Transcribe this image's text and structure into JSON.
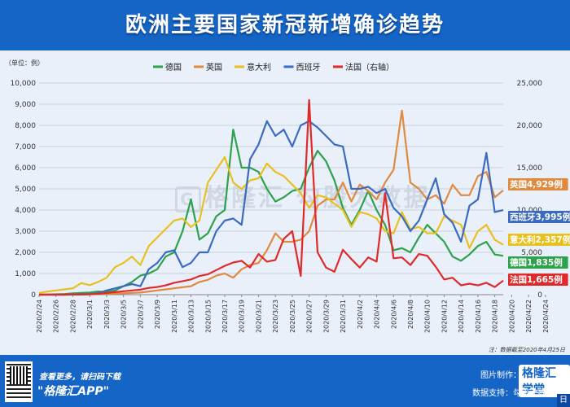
{
  "title": "欧洲主要国家新冠新增确诊趋势",
  "unit_label": "（单位：例）",
  "footer": {
    "promo": "查看更多，请扫码下载",
    "app": "\"格隆汇APP\"",
    "credit": "图片制作：",
    "brand": "格隆汇学堂",
    "support": "数据支持：勾股大数据 Wi",
    "corner": "日"
  },
  "chart_data": {
    "type": "line",
    "title": "欧洲主要国家新冠新增确诊趋势",
    "ylabel": "（单位：例）",
    "y_left": [
      0,
      10000
    ],
    "y_right": [
      0,
      25000
    ],
    "left_ticks": [
      "0",
      "1,000",
      "2,000",
      "3,000",
      "4,000",
      "5,000",
      "6,000",
      "7,000",
      "8,000",
      "9,000",
      "10,000"
    ],
    "right_ticks": [
      "0",
      "5,000",
      "10,000",
      "15,000",
      "20,000",
      "25,000"
    ],
    "x_labels": [
      "2020/2/24",
      "2020/2/26",
      "2020/2/28",
      "2020/3/1",
      "2020/3/3",
      "2020/3/5",
      "2020/3/7",
      "2020/3/9",
      "2020/3/11",
      "2020/3/13",
      "2020/3/15",
      "2020/3/17",
      "2020/3/19",
      "2020/3/21",
      "2020/3/23",
      "2020/3/25",
      "2020/3/27",
      "2020/3/29",
      "2020/3/31",
      "2020/4/2",
      "2020/4/4",
      "2020/4/6",
      "2020/4/8",
      "2020/4/10",
      "2020/4/12",
      "2020/4/14",
      "2020/4/16",
      "2020/4/18",
      "2020/4/20",
      "2020/4/22",
      "2020/4/24"
    ],
    "series": [
      {
        "name": "德国",
        "color": "#2ca24a",
        "axis": "left",
        "values": [
          0,
          10,
          20,
          30,
          60,
          80,
          100,
          150,
          130,
          200,
          400,
          600,
          900,
          1000,
          1200,
          1800,
          2000,
          3000,
          4500,
          2600,
          2900,
          3700,
          4000,
          7800,
          6000,
          6000,
          5800,
          5000,
          4400,
          4600,
          4900,
          5000,
          6000,
          6800,
          6300,
          5400,
          4100,
          3300,
          4000,
          4900,
          4000,
          3300,
          2100,
          2200,
          2000,
          2700,
          3300,
          2900,
          2500,
          1800,
          1600,
          1900,
          2300,
          2500,
          1900,
          1835
        ]
      },
      {
        "name": "英国",
        "color": "#e08a40",
        "axis": "left",
        "values": [
          0,
          0,
          0,
          0,
          10,
          10,
          20,
          30,
          40,
          50,
          60,
          80,
          100,
          150,
          200,
          250,
          300,
          350,
          400,
          600,
          700,
          900,
          1000,
          800,
          1200,
          1400,
          1500,
          2100,
          2900,
          2500,
          2500,
          2600,
          3000,
          4200,
          4500,
          4500,
          5300,
          4400,
          5200,
          4900,
          4500,
          5300,
          5900,
          8700,
          5300,
          5000,
          4500,
          4700,
          4300,
          5200,
          4700,
          4700,
          5600,
          5800,
          4600,
          4929
        ]
      },
      {
        "name": "意大利",
        "color": "#e8c020",
        "axis": "left",
        "values": [
          80,
          150,
          200,
          250,
          300,
          550,
          450,
          600,
          800,
          1300,
          1500,
          1800,
          1400,
          2300,
          2700,
          3100,
          3500,
          3600,
          3200,
          3500,
          5300,
          5900,
          6500,
          5300,
          5000,
          5400,
          5500,
          6200,
          5800,
          5600,
          5200,
          4800,
          4100,
          4700,
          4600,
          4300,
          4000,
          3200,
          3900,
          3800,
          3600,
          3000,
          2900,
          3900,
          3100,
          3200,
          2900,
          2900,
          3700,
          3500,
          3300,
          2200,
          3000,
          3300,
          2600,
          2357
        ]
      },
      {
        "name": "西班牙",
        "color": "#3a6bc0",
        "axis": "left",
        "values": [
          0,
          0,
          0,
          0,
          10,
          20,
          30,
          70,
          200,
          300,
          400,
          500,
          400,
          1200,
          1500,
          2000,
          2100,
          1300,
          1500,
          2000,
          2000,
          3000,
          3500,
          3600,
          3300,
          6400,
          7100,
          8200,
          7500,
          7800,
          7000,
          8000,
          8200,
          7900,
          7500,
          7100,
          7000,
          5000,
          5000,
          5100,
          4800,
          5000,
          4100,
          3700,
          3000,
          3500,
          4500,
          5500,
          3800,
          3400,
          2500,
          4200,
          4500,
          6700,
          3900,
          3995
        ]
      },
      {
        "name": "法国（右轴）",
        "color": "#e02a2a",
        "axis": "right",
        "values": [
          0,
          0,
          0,
          0,
          10,
          10,
          50,
          100,
          200,
          300,
          400,
          500,
          600,
          800,
          900,
          1100,
          1400,
          1600,
          1800,
          2200,
          2400,
          2900,
          3400,
          3800,
          4000,
          3200,
          4800,
          3900,
          4100,
          6600,
          7500,
          2200,
          23000,
          5000,
          3200,
          2700,
          5300,
          4200,
          3200,
          4400,
          3900,
          12000,
          4300,
          4400,
          3500,
          4800,
          4600,
          3300,
          1800,
          2000,
          1100,
          1300,
          1100,
          1400,
          900,
          1665
        ]
      }
    ],
    "end_labels": [
      {
        "text": "英国4,929例",
        "color": "#e08a40",
        "series": 1
      },
      {
        "text": "西班牙3,995例",
        "color": "#3a6bc0",
        "series": 3
      },
      {
        "text": "意大利2,357例",
        "color": "#e8c020",
        "series": 2
      },
      {
        "text": "德国1,835例",
        "color": "#2ca24a",
        "series": 0
      },
      {
        "text": "法国1,665例",
        "color": "#e02a2a",
        "series": 4
      }
    ],
    "note": "注：数据截至2020年4月25日",
    "watermark": "格隆汇 勾股大数据"
  }
}
